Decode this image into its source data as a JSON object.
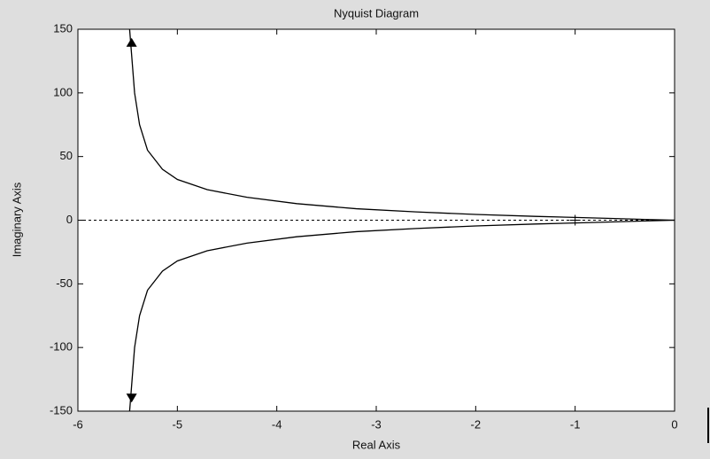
{
  "chart_data": {
    "type": "line",
    "title": "Nyquist Diagram",
    "x_label": "Real Axis",
    "y_label": "Imaginary Axis",
    "x": [
      -5.48,
      -5.46,
      -5.43,
      -5.38,
      -5.3,
      -5.15,
      -5.0,
      -4.7,
      -4.3,
      -3.8,
      -3.2,
      -2.6,
      -2.0,
      -1.4,
      -1.0,
      -0.6,
      -0.3,
      0
    ],
    "series": [
      {
        "color": "#000000",
        "values": [
          150,
          130,
          100,
          75,
          55,
          40,
          32,
          24,
          18,
          13,
          9,
          6.5,
          4.5,
          3,
          2.2,
          1.3,
          0.6,
          0
        ]
      },
      {
        "color": "#000000",
        "values": [
          -150,
          -130,
          -100,
          -75,
          -55,
          -40,
          -32,
          -24,
          -18,
          -13,
          -9,
          -6.5,
          -4.5,
          -3,
          -2.2,
          -1.3,
          -0.6,
          0
        ]
      }
    ],
    "xlim": [
      -6,
      0
    ],
    "xticks": [
      -6,
      -5,
      -4,
      -3,
      -2,
      -1,
      0
    ],
    "ylim": [
      -150,
      150
    ],
    "yticks": [
      -150,
      -100,
      -50,
      0,
      50,
      100,
      150
    ],
    "grid": false
  }
}
